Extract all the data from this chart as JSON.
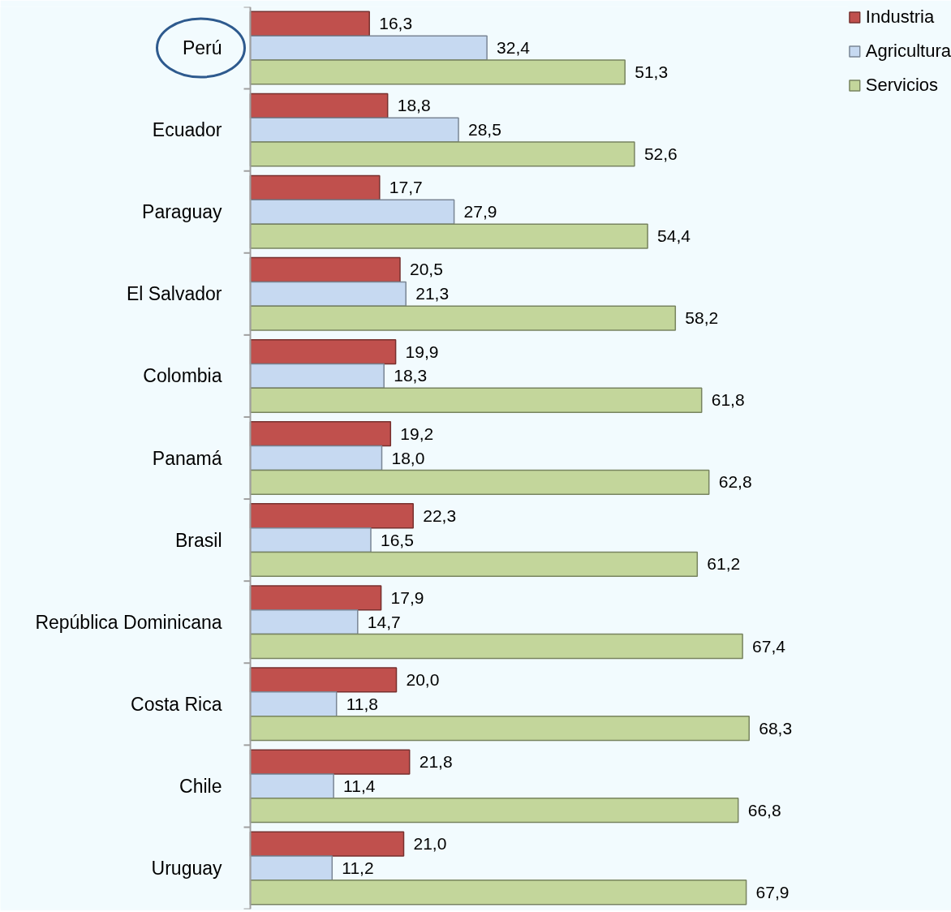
{
  "chart_data": {
    "type": "bar",
    "orientation": "horizontal",
    "categories": [
      "Perú",
      "Ecuador",
      "Paraguay",
      "El Salvador",
      "Colombia",
      "Panamá",
      "Brasil",
      "República Dominicana",
      "Costa Rica",
      "Chile",
      "Uruguay"
    ],
    "series": [
      {
        "name": "Industria",
        "color": "#c0504d",
        "values": [
          16.3,
          18.8,
          17.7,
          20.5,
          19.9,
          19.2,
          22.3,
          17.9,
          20.0,
          21.8,
          21.0
        ],
        "value_labels": [
          "16,3",
          "18,8",
          "17,7",
          "20,5",
          "19,9",
          "19,2",
          "22,3",
          "17,9",
          "20,0",
          "21,8",
          "21,0"
        ]
      },
      {
        "name": "Agricultura",
        "color": "#c6d9f1",
        "values": [
          32.4,
          28.5,
          27.9,
          21.3,
          18.3,
          18.0,
          16.5,
          14.7,
          11.8,
          11.4,
          11.2
        ],
        "value_labels": [
          "32,4",
          "28,5",
          "27,9",
          "21,3",
          "18,3",
          "18,0",
          "16,5",
          "14,7",
          "11,8",
          "11,4",
          "11,2"
        ]
      },
      {
        "name": "Servicios",
        "color": "#c3d69b",
        "values": [
          51.3,
          52.6,
          54.4,
          58.2,
          61.8,
          62.8,
          61.2,
          67.4,
          68.3,
          66.8,
          67.9
        ],
        "value_labels": [
          "51,3",
          "52,6",
          "54,4",
          "58,2",
          "61,8",
          "62,8",
          "61,2",
          "67,4",
          "68,3",
          "66,8",
          "67,9"
        ]
      }
    ],
    "xlim": [
      0,
      96
    ],
    "tick_labels": "y",
    "legend": "top right"
  }
}
